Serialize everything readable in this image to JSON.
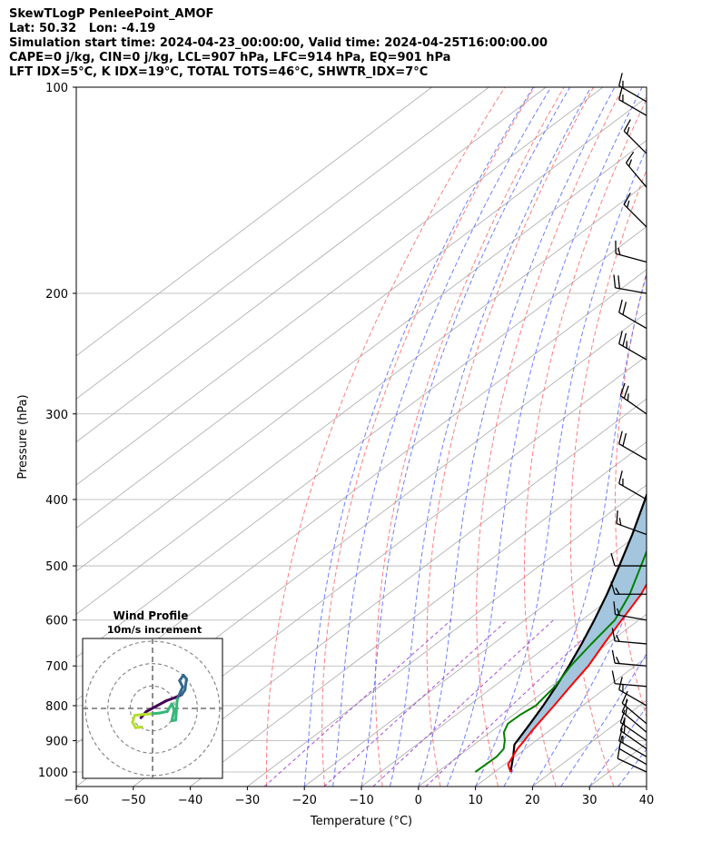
{
  "header": {
    "line1": "SkewTLogP PenleePoint_AMOF",
    "line2": "Lat: 50.32   Lon: -4.19",
    "line3": "Simulation start time: 2024-04-23_00:00:00, Valid time: 2024-04-25T16:00:00.00",
    "line4": "CAPE=0 j/kg, CIN=0 j/kg, LCL=907 hPa, LFC=914 hPa, EQ=901 hPa",
    "line5": "LFT IDX=5°C, K IDX=19°C, TOTAL TOTS=46°C, SHWTR_IDX=7°C"
  },
  "chart_data": {
    "type": "line",
    "subtype": "skew-T log-P",
    "xlabel": "Temperature (°C)",
    "ylabel": "Pressure (hPa)",
    "xlim": [
      -60,
      40
    ],
    "ylim": [
      1050,
      100
    ],
    "yscale": "log",
    "x_ticks": [
      "−60",
      "−50",
      "−40",
      "−30",
      "−20",
      "−10",
      "0",
      "10",
      "20",
      "30",
      "40"
    ],
    "y_ticks": [
      "100",
      "200",
      "300",
      "400",
      "500",
      "600",
      "700",
      "800",
      "900",
      "1000"
    ],
    "grid": true,
    "colors": {
      "temperature": "#ff0000",
      "dewpoint": "#008000",
      "parcel": "#000000",
      "shading": "#a3c6de",
      "dry_adiabats": "#ff6666",
      "moist_adiabats": "#5566ff",
      "mixing_ratio": "#9933cc",
      "isotherms": "#aaaaaa"
    },
    "series": [
      {
        "role": "temperature",
        "points": [
          [
            1000,
            12.8
          ],
          [
            975,
            10.6
          ],
          [
            950,
            9.6
          ],
          [
            925,
            8.6
          ],
          [
            900,
            7.9
          ],
          [
            875,
            7.1
          ],
          [
            850,
            6.4
          ],
          [
            800,
            5.0
          ],
          [
            750,
            3.4
          ],
          [
            700,
            1.8
          ],
          [
            650,
            -0.6
          ],
          [
            600,
            -3.0
          ],
          [
            550,
            -5.6
          ],
          [
            500,
            -9.4
          ],
          [
            450,
            -13.9
          ],
          [
            400,
            -19.7
          ],
          [
            350,
            -26.9
          ],
          [
            300,
            -34.9
          ],
          [
            275,
            -39.3
          ],
          [
            250,
            -43.4
          ],
          [
            225,
            -45.8
          ],
          [
            200,
            -47.4
          ],
          [
            180,
            -49.5
          ],
          [
            160,
            -49.8
          ],
          [
            140,
            -48.9
          ],
          [
            125,
            -47.9
          ],
          [
            110,
            -47.1
          ],
          [
            100,
            -46.3
          ]
        ]
      },
      {
        "role": "dewpoint",
        "points": [
          [
            1000,
            6.6
          ],
          [
            975,
            6.7
          ],
          [
            950,
            6.8
          ],
          [
            925,
            6.2
          ],
          [
            900,
            4.5
          ],
          [
            875,
            2.4
          ],
          [
            850,
            1.1
          ],
          [
            825,
            1.2
          ],
          [
            800,
            1.8
          ],
          [
            750,
            0.7
          ],
          [
            700,
            -1.3
          ],
          [
            650,
            -2.8
          ],
          [
            600,
            -4.2
          ],
          [
            550,
            -7.6
          ],
          [
            500,
            -12.2
          ],
          [
            450,
            -17.3
          ],
          [
            400,
            -22.8
          ],
          [
            375,
            -25.3
          ],
          [
            350,
            -28.5
          ],
          [
            325,
            -32.6
          ],
          [
            300,
            -37.0
          ],
          [
            275,
            -42.2
          ],
          [
            250,
            -47.0
          ],
          [
            225,
            -51.0
          ],
          [
            200,
            -55.2
          ],
          [
            180,
            -58.6
          ],
          [
            160,
            -63.8
          ],
          [
            150,
            -70.1
          ],
          [
            140,
            -74.5
          ],
          [
            120,
            -80.1
          ],
          [
            100,
            -85.8
          ]
        ]
      },
      {
        "role": "parcel",
        "points": [
          [
            1000,
            12.8
          ],
          [
            950,
            9.7
          ],
          [
            912,
            7.1
          ],
          [
            850,
            5.0
          ],
          [
            800,
            3.1
          ],
          [
            750,
            0.9
          ],
          [
            700,
            -1.6
          ],
          [
            650,
            -4.5
          ],
          [
            600,
            -7.8
          ],
          [
            550,
            -11.6
          ],
          [
            500,
            -16.0
          ],
          [
            450,
            -21.0
          ],
          [
            400,
            -26.9
          ],
          [
            350,
            -33.8
          ],
          [
            300,
            -42.0
          ],
          [
            250,
            -51.9
          ],
          [
            200,
            -63.0
          ],
          [
            150,
            -76.0
          ],
          [
            100,
            -92.0
          ]
        ]
      }
    ],
    "winds": {
      "units": "knots",
      "barbs": [
        {
          "p": 1000,
          "spd": 12,
          "dir": 295
        },
        {
          "p": 975,
          "spd": 12,
          "dir": 300
        },
        {
          "p": 950,
          "spd": 15,
          "dir": 300
        },
        {
          "p": 925,
          "spd": 15,
          "dir": 305
        },
        {
          "p": 900,
          "spd": 15,
          "dir": 305
        },
        {
          "p": 875,
          "spd": 15,
          "dir": 310
        },
        {
          "p": 850,
          "spd": 15,
          "dir": 310
        },
        {
          "p": 800,
          "spd": 15,
          "dir": 300
        },
        {
          "p": 750,
          "spd": 10,
          "dir": 275
        },
        {
          "p": 700,
          "spd": 15,
          "dir": 275
        },
        {
          "p": 650,
          "spd": 15,
          "dir": 275
        },
        {
          "p": 600,
          "spd": 15,
          "dir": 280
        },
        {
          "p": 550,
          "spd": 15,
          "dir": 270
        },
        {
          "p": 500,
          "spd": 10,
          "dir": 270
        },
        {
          "p": 450,
          "spd": 15,
          "dir": 290
        },
        {
          "p": 400,
          "spd": 15,
          "dir": 300
        },
        {
          "p": 350,
          "spd": 20,
          "dir": 300
        },
        {
          "p": 300,
          "spd": 25,
          "dir": 305
        },
        {
          "p": 250,
          "spd": 25,
          "dir": 300
        },
        {
          "p": 225,
          "spd": 20,
          "dir": 300
        },
        {
          "p": 200,
          "spd": 20,
          "dir": 280
        },
        {
          "p": 180,
          "spd": 15,
          "dir": 285
        },
        {
          "p": 160,
          "spd": 15,
          "dir": 315
        },
        {
          "p": 140,
          "spd": 15,
          "dir": 320
        },
        {
          "p": 125,
          "spd": 15,
          "dir": 315
        },
        {
          "p": 110,
          "spd": 15,
          "dir": 300
        },
        {
          "p": 105,
          "spd": 15,
          "dir": 300
        }
      ]
    },
    "inset": {
      "title": "Wind Profile",
      "subtitle": "10m/s increment",
      "type": "hodograph",
      "hodograph": [
        [
          -1.5,
          -1.2
        ],
        [
          -0.8,
          -0.4
        ],
        [
          0.5,
          0.3
        ],
        [
          1.8,
          1.0
        ],
        [
          2.9,
          1.4
        ],
        [
          3.8,
          1.8
        ],
        [
          4.2,
          2.4
        ],
        [
          4.4,
          3.8
        ],
        [
          4.0,
          4.3
        ],
        [
          3.5,
          3.6
        ],
        [
          3.9,
          2.8
        ],
        [
          3.2,
          1.2
        ],
        [
          3.0,
          -1.5
        ],
        [
          2.5,
          -1.6
        ],
        [
          2.8,
          -0.2
        ],
        [
          2.5,
          0.6
        ],
        [
          1.9,
          -0.4
        ],
        [
          0.9,
          -0.6
        ],
        [
          -0.3,
          -0.7
        ],
        [
          -1.3,
          -0.8
        ],
        [
          -2.3,
          -0.9
        ],
        [
          -2.6,
          -1.8
        ],
        [
          -2.2,
          -2.5
        ],
        [
          -1.4,
          -2.4
        ]
      ]
    }
  }
}
